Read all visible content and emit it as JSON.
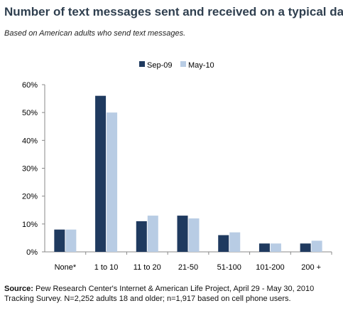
{
  "title": "Number of text messages sent and received on a typical day",
  "subtitle": "Based on American  adults who send text messages.",
  "source": {
    "label": "Source:",
    "text": "Pew Research Center's Internet & American Life Project, April 29 - May 30, 2010 Tracking Survey. N=2,252 adults 18 and older; n=1,917 based on cell phone users."
  },
  "colors": {
    "sep09": "#1f3a5f",
    "may10": "#b8cce4"
  },
  "chart_data": {
    "type": "bar",
    "title": "Number of text messages sent and received on a typical day",
    "subtitle": "Based on American  adults who send text messages.",
    "categories": [
      "None*",
      "1 to 10",
      "11 to 20",
      "21-50",
      "51-100",
      "101-200",
      "200 +"
    ],
    "series": [
      {
        "name": "Sep-09",
        "values": [
          8,
          56,
          11,
          13,
          6,
          3,
          3
        ]
      },
      {
        "name": "May-10",
        "values": [
          8,
          50,
          13,
          12,
          7,
          3,
          4
        ]
      }
    ],
    "ylim": [
      0,
      60
    ],
    "yticks": [
      "0%",
      "10%",
      "20%",
      "30%",
      "40%",
      "50%",
      "60%"
    ],
    "xlabel": "",
    "ylabel": "",
    "grid": false,
    "legend_position": "top"
  }
}
